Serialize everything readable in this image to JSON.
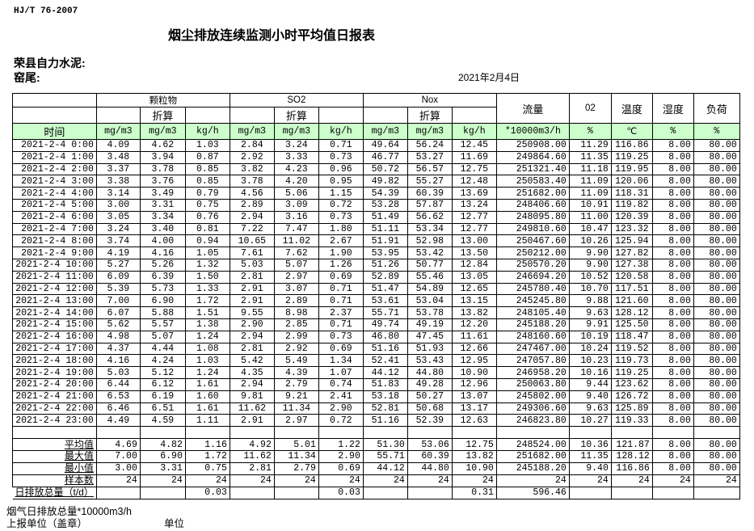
{
  "header": {
    "standard": "HJ/T  76-2007",
    "title": "烟尘排放连续监测小时平均值日报表",
    "company": "荣县自力水泥:",
    "kiln": "窑尾:",
    "date": "2021年2月4日"
  },
  "columns": {
    "groups": {
      "pm": "颗粒物",
      "so2": "SO2",
      "nox": "Nox",
      "flow": "流量",
      "o2": "02",
      "temp": "温度",
      "humidity": "湿度",
      "load": "负荷"
    },
    "converted": "折算",
    "time": "时间",
    "units": [
      "mg/m3",
      "mg/m3",
      "kg/h",
      "mg/m3",
      "mg/m3",
      "kg/h",
      "mg/m3",
      "mg/m3",
      "kg/h",
      "*10000m3/h",
      "%",
      "℃",
      "%",
      "%"
    ]
  },
  "rows": [
    [
      "2021-2-4 0:00",
      "4.09",
      "4.62",
      "1.03",
      "2.84",
      "3.24",
      "0.71",
      "49.64",
      "56.24",
      "12.45",
      "250908.00",
      "11.29",
      "116.86",
      "8.00",
      "80.00"
    ],
    [
      "2021-2-4 1:00",
      "3.48",
      "3.94",
      "0.87",
      "2.92",
      "3.33",
      "0.73",
      "46.77",
      "53.27",
      "11.69",
      "249864.60",
      "11.35",
      "119.25",
      "8.00",
      "80.00"
    ],
    [
      "2021-2-4 2:00",
      "3.37",
      "3.78",
      "0.85",
      "3.82",
      "4.23",
      "0.96",
      "50.72",
      "56.57",
      "12.75",
      "251321.40",
      "11.18",
      "119.95",
      "8.00",
      "80.00"
    ],
    [
      "2021-2-4 3:00",
      "3.38",
      "3.76",
      "0.85",
      "3.78",
      "4.20",
      "0.95",
      "49.82",
      "55.27",
      "12.48",
      "250583.40",
      "11.09",
      "120.06",
      "8.00",
      "80.00"
    ],
    [
      "2021-2-4 4:00",
      "3.14",
      "3.49",
      "0.79",
      "4.56",
      "5.06",
      "1.15",
      "54.39",
      "60.39",
      "13.69",
      "251682.00",
      "11.09",
      "118.31",
      "8.00",
      "80.00"
    ],
    [
      "2021-2-4 5:00",
      "3.00",
      "3.31",
      "0.75",
      "2.89",
      "3.09",
      "0.72",
      "53.28",
      "57.87",
      "13.24",
      "248406.60",
      "10.91",
      "119.82",
      "8.00",
      "80.00"
    ],
    [
      "2021-2-4 6:00",
      "3.05",
      "3.34",
      "0.76",
      "2.94",
      "3.16",
      "0.73",
      "51.49",
      "56.62",
      "12.77",
      "248095.80",
      "11.00",
      "120.39",
      "8.00",
      "80.00"
    ],
    [
      "2021-2-4 7:00",
      "3.24",
      "3.40",
      "0.81",
      "7.22",
      "7.47",
      "1.80",
      "51.11",
      "53.34",
      "12.77",
      "249810.60",
      "10.47",
      "123.32",
      "8.00",
      "80.00"
    ],
    [
      "2021-2-4 8:00",
      "3.74",
      "4.00",
      "0.94",
      "10.65",
      "11.02",
      "2.67",
      "51.91",
      "52.98",
      "13.00",
      "250467.60",
      "10.26",
      "125.94",
      "8.00",
      "80.00"
    ],
    [
      "2021-2-4 9:00",
      "4.19",
      "4.16",
      "1.05",
      "7.61",
      "7.62",
      "1.90",
      "53.95",
      "53.42",
      "13.50",
      "250212.00",
      "9.90",
      "127.82",
      "8.00",
      "80.00"
    ],
    [
      "2021-2-4 10:00",
      "5.27",
      "5.26",
      "1.32",
      "5.03",
      "5.07",
      "1.26",
      "51.26",
      "50.77",
      "12.84",
      "250570.20",
      "9.90",
      "127.38",
      "8.00",
      "80.00"
    ],
    [
      "2021-2-4 11:00",
      "6.09",
      "6.39",
      "1.50",
      "2.81",
      "2.97",
      "0.69",
      "52.89",
      "55.46",
      "13.05",
      "246694.20",
      "10.52",
      "120.58",
      "8.00",
      "80.00"
    ],
    [
      "2021-2-4 12:00",
      "5.39",
      "5.73",
      "1.33",
      "2.91",
      "3.07",
      "0.71",
      "51.47",
      "54.89",
      "12.65",
      "245780.40",
      "10.70",
      "117.51",
      "8.00",
      "80.00"
    ],
    [
      "2021-2-4 13:00",
      "7.00",
      "6.90",
      "1.72",
      "2.91",
      "2.89",
      "0.71",
      "53.61",
      "53.04",
      "13.15",
      "245245.80",
      "9.88",
      "121.60",
      "8.00",
      "80.00"
    ],
    [
      "2021-2-4 14:00",
      "6.07",
      "5.88",
      "1.51",
      "9.55",
      "8.98",
      "2.37",
      "55.71",
      "53.78",
      "13.82",
      "248105.40",
      "9.63",
      "128.12",
      "8.00",
      "80.00"
    ],
    [
      "2021-2-4 15:00",
      "5.62",
      "5.57",
      "1.38",
      "2.90",
      "2.85",
      "0.71",
      "49.74",
      "49.19",
      "12.20",
      "245188.20",
      "9.91",
      "125.50",
      "8.00",
      "80.00"
    ],
    [
      "2021-2-4 16:00",
      "4.98",
      "5.07",
      "1.24",
      "2.94",
      "2.99",
      "0.73",
      "46.80",
      "47.45",
      "11.61",
      "248160.60",
      "10.19",
      "118.47",
      "8.00",
      "80.00"
    ],
    [
      "2021-2-4 17:00",
      "4.37",
      "4.44",
      "1.08",
      "2.81",
      "2.92",
      "0.69",
      "51.16",
      "51.93",
      "12.66",
      "247467.00",
      "10.24",
      "119.52",
      "8.00",
      "80.00"
    ],
    [
      "2021-2-4 18:00",
      "4.16",
      "4.24",
      "1.03",
      "5.42",
      "5.49",
      "1.34",
      "52.41",
      "53.43",
      "12.95",
      "247057.80",
      "10.23",
      "119.73",
      "8.00",
      "80.00"
    ],
    [
      "2021-2-4 19:00",
      "5.03",
      "5.12",
      "1.24",
      "4.35",
      "4.39",
      "1.07",
      "44.12",
      "44.80",
      "10.90",
      "246958.20",
      "10.16",
      "119.25",
      "8.00",
      "80.00"
    ],
    [
      "2021-2-4 20:00",
      "6.44",
      "6.12",
      "1.61",
      "2.94",
      "2.79",
      "0.74",
      "51.83",
      "49.28",
      "12.96",
      "250063.80",
      "9.44",
      "123.62",
      "8.00",
      "80.00"
    ],
    [
      "2021-2-4 21:00",
      "6.53",
      "6.19",
      "1.60",
      "9.81",
      "9.21",
      "2.41",
      "53.18",
      "50.27",
      "13.07",
      "245802.00",
      "9.40",
      "126.72",
      "8.00",
      "80.00"
    ],
    [
      "2021-2-4 22:00",
      "6.46",
      "6.51",
      "1.61",
      "11.62",
      "11.34",
      "2.90",
      "52.81",
      "50.68",
      "13.17",
      "249306.60",
      "9.63",
      "125.89",
      "8.00",
      "80.00"
    ],
    [
      "2021-2-4 23:00",
      "4.49",
      "4.59",
      "1.11",
      "2.91",
      "2.97",
      "0.72",
      "51.16",
      "52.39",
      "12.63",
      "246823.80",
      "10.27",
      "119.33",
      "8.00",
      "80.00"
    ]
  ],
  "stats": [
    [
      "平均值",
      "4.69",
      "4.82",
      "1.16",
      "4.92",
      "5.01",
      "1.22",
      "51.30",
      "53.06",
      "12.75",
      "248524.00",
      "10.36",
      "121.87",
      "8.00",
      "80.00"
    ],
    [
      "最大值",
      "7.00",
      "6.90",
      "1.72",
      "11.62",
      "11.34",
      "2.90",
      "55.71",
      "60.39",
      "13.82",
      "251682.00",
      "11.35",
      "128.12",
      "8.00",
      "80.00"
    ],
    [
      "最小值",
      "3.00",
      "3.31",
      "0.75",
      "2.81",
      "2.79",
      "0.69",
      "44.12",
      "44.80",
      "10.90",
      "245188.20",
      "9.40",
      "116.86",
      "8.00",
      "80.00"
    ],
    [
      "样本数",
      "24",
      "24",
      "24",
      "24",
      "24",
      "24",
      "24",
      "24",
      "24",
      "24",
      "24",
      "24",
      "24",
      "24"
    ],
    [
      "日排放总量（t/d）",
      "",
      "",
      "0.03",
      "",
      "",
      "0.03",
      "",
      "",
      "0.31",
      "596.46",
      "",
      "",
      "",
      ""
    ]
  ],
  "footer": {
    "flue_gas_total": "烟气日排放总量*10000m3/h",
    "reporting_unit": "上报单位（盖章）",
    "unit": "单位"
  },
  "colors": {
    "unit_row_bg": "#ccffcc",
    "border": "#000000"
  }
}
